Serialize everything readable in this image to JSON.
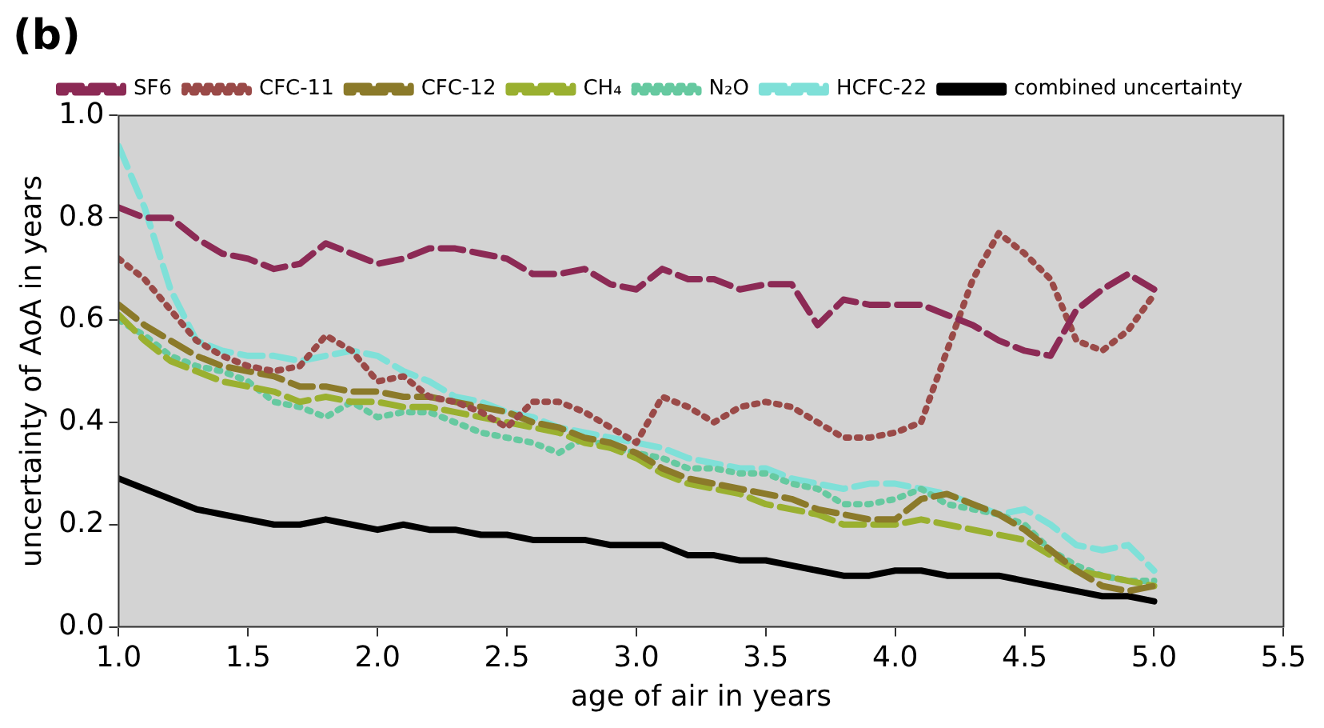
{
  "chart_data": {
    "type": "line",
    "title": "(b)",
    "xlabel": "age of air in years",
    "ylabel": "uncertainty of AoA in years",
    "x": [
      1.0,
      1.1,
      1.2,
      1.3,
      1.4,
      1.5,
      1.6,
      1.7,
      1.8,
      1.9,
      2.0,
      2.1,
      2.2,
      2.3,
      2.4,
      2.5,
      2.6,
      2.7,
      2.8,
      2.9,
      3.0,
      3.1,
      3.2,
      3.3,
      3.4,
      3.5,
      3.6,
      3.7,
      3.8,
      3.9,
      4.0,
      4.1,
      4.2,
      4.3,
      4.4,
      4.5,
      4.6,
      4.7,
      4.8,
      4.9,
      5.0
    ],
    "series": [
      {
        "name": "SF6",
        "color": "#8c2a55",
        "line_style": "dashed",
        "values": [
          0.82,
          0.8,
          0.8,
          0.76,
          0.73,
          0.72,
          0.7,
          0.71,
          0.75,
          0.73,
          0.71,
          0.72,
          0.74,
          0.74,
          0.73,
          0.72,
          0.69,
          0.69,
          0.7,
          0.67,
          0.66,
          0.7,
          0.68,
          0.68,
          0.66,
          0.67,
          0.67,
          0.59,
          0.64,
          0.63,
          0.63,
          0.63,
          0.61,
          0.59,
          0.56,
          0.54,
          0.53,
          0.62,
          0.66,
          0.69,
          0.66
        ]
      },
      {
        "name": "CFC-11",
        "color": "#9a4a48",
        "line_style": "dotted",
        "values": [
          0.72,
          0.68,
          0.62,
          0.56,
          0.53,
          0.51,
          0.5,
          0.51,
          0.57,
          0.54,
          0.48,
          0.49,
          0.45,
          0.44,
          0.42,
          0.39,
          0.44,
          0.44,
          0.42,
          0.39,
          0.36,
          0.45,
          0.43,
          0.4,
          0.43,
          0.44,
          0.43,
          0.4,
          0.37,
          0.37,
          0.38,
          0.4,
          0.54,
          0.68,
          0.77,
          0.73,
          0.68,
          0.56,
          0.54,
          0.58,
          0.65
        ]
      },
      {
        "name": "CFC-12",
        "color": "#8b7a2a",
        "line_style": "dashed",
        "values": [
          0.63,
          0.59,
          0.56,
          0.53,
          0.51,
          0.5,
          0.49,
          0.47,
          0.47,
          0.46,
          0.46,
          0.45,
          0.45,
          0.44,
          0.43,
          0.42,
          0.4,
          0.39,
          0.37,
          0.36,
          0.34,
          0.31,
          0.29,
          0.28,
          0.27,
          0.26,
          0.25,
          0.23,
          0.22,
          0.21,
          0.21,
          0.25,
          0.26,
          0.24,
          0.22,
          0.19,
          0.15,
          0.11,
          0.08,
          0.07,
          0.08
        ]
      },
      {
        "name": "CH₄",
        "color": "#9ab030",
        "line_style": "dashed",
        "values": [
          0.61,
          0.56,
          0.52,
          0.5,
          0.48,
          0.47,
          0.46,
          0.44,
          0.45,
          0.44,
          0.44,
          0.43,
          0.43,
          0.42,
          0.41,
          0.4,
          0.39,
          0.38,
          0.36,
          0.35,
          0.33,
          0.3,
          0.28,
          0.27,
          0.26,
          0.24,
          0.23,
          0.22,
          0.2,
          0.2,
          0.2,
          0.21,
          0.2,
          0.19,
          0.18,
          0.17,
          0.14,
          0.11,
          0.1,
          0.09,
          0.08
        ]
      },
      {
        "name": "N₂O",
        "color": "#66c9a0",
        "line_style": "dotted",
        "values": [
          0.6,
          0.57,
          0.53,
          0.51,
          0.5,
          0.48,
          0.44,
          0.43,
          0.41,
          0.44,
          0.41,
          0.42,
          0.42,
          0.4,
          0.38,
          0.37,
          0.36,
          0.34,
          0.37,
          0.35,
          0.34,
          0.33,
          0.31,
          0.31,
          0.3,
          0.3,
          0.28,
          0.27,
          0.24,
          0.24,
          0.25,
          0.27,
          0.24,
          0.23,
          0.22,
          0.2,
          0.15,
          0.12,
          0.1,
          0.09,
          0.09
        ]
      },
      {
        "name": "HCFC-22",
        "color": "#7fe0d8",
        "line_style": "dashed",
        "values": [
          0.94,
          0.82,
          0.66,
          0.56,
          0.54,
          0.53,
          0.53,
          0.52,
          0.53,
          0.54,
          0.53,
          0.5,
          0.48,
          0.45,
          0.44,
          0.42,
          0.41,
          0.39,
          0.38,
          0.37,
          0.36,
          0.35,
          0.33,
          0.32,
          0.31,
          0.31,
          0.29,
          0.28,
          0.27,
          0.28,
          0.28,
          0.27,
          0.26,
          0.24,
          0.22,
          0.23,
          0.2,
          0.16,
          0.15,
          0.16,
          0.11
        ]
      },
      {
        "name": "combined uncertainty",
        "color": "#000000",
        "line_style": "solid",
        "values": [
          0.29,
          0.27,
          0.25,
          0.23,
          0.22,
          0.21,
          0.2,
          0.2,
          0.21,
          0.2,
          0.19,
          0.2,
          0.19,
          0.19,
          0.18,
          0.18,
          0.17,
          0.17,
          0.17,
          0.16,
          0.16,
          0.16,
          0.14,
          0.14,
          0.13,
          0.13,
          0.12,
          0.11,
          0.1,
          0.1,
          0.11,
          0.11,
          0.1,
          0.1,
          0.1,
          0.09,
          0.08,
          0.07,
          0.06,
          0.06,
          0.05
        ]
      }
    ],
    "xlim": [
      1.0,
      5.5
    ],
    "xticks": [
      {
        "value": 1.0,
        "label": "1.0"
      },
      {
        "value": 1.5,
        "label": "1.5"
      },
      {
        "value": 2.0,
        "label": "2.0"
      },
      {
        "value": 2.5,
        "label": "2.5"
      },
      {
        "value": 3.0,
        "label": "3.0"
      },
      {
        "value": 3.5,
        "label": "3.5"
      },
      {
        "value": 4.0,
        "label": "4.0"
      },
      {
        "value": 4.5,
        "label": "4.5"
      },
      {
        "value": 5.0,
        "label": "5.0"
      },
      {
        "value": 5.5,
        "label": "5.5"
      }
    ],
    "ylim": [
      0.0,
      1.0
    ],
    "yticks": [
      {
        "value": 0.0,
        "label": "0.0"
      },
      {
        "value": 0.2,
        "label": "0.2"
      },
      {
        "value": 0.4,
        "label": "0.4"
      },
      {
        "value": 0.6,
        "label": "0.6"
      },
      {
        "value": 0.8,
        "label": "0.8"
      },
      {
        "value": 1.0,
        "label": "1.0"
      }
    ],
    "legend": "top",
    "marker": "none"
  }
}
